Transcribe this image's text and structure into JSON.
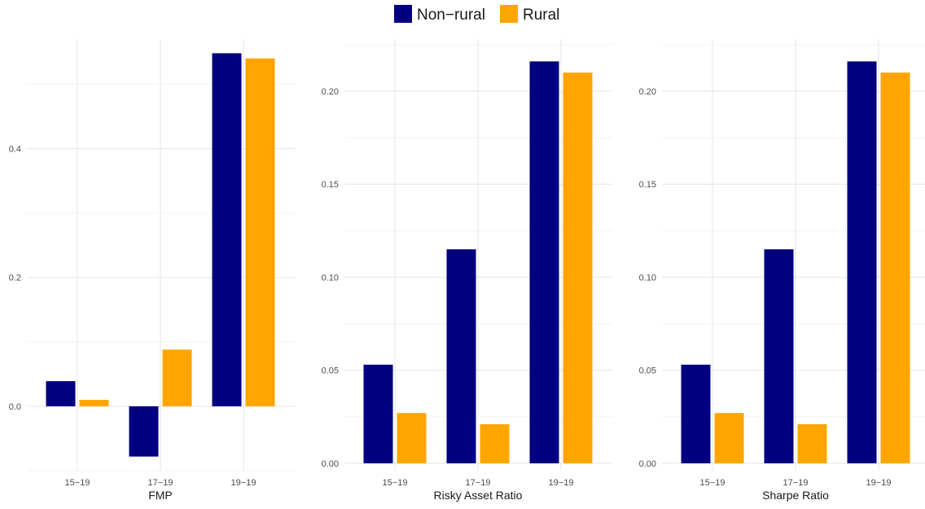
{
  "legend": {
    "position": "top",
    "items": [
      {
        "label": "Non−rural",
        "color": "#000080"
      },
      {
        "label": "Rural",
        "color": "#FFA500"
      }
    ]
  },
  "chart_data": [
    {
      "type": "bar",
      "xlabel": "FMP",
      "ylabel": "",
      "categories": [
        "15−19",
        "17−19",
        "19−19"
      ],
      "series": [
        {
          "name": "Non−rural",
          "color": "#000080",
          "values": [
            0.039,
            -0.078,
            0.548
          ]
        },
        {
          "name": "Rural",
          "color": "#FFA500",
          "values": [
            0.01,
            0.088,
            0.54
          ]
        }
      ],
      "ylim": [
        -0.1,
        0.57
      ],
      "yticks": [
        0.0,
        0.2,
        0.4
      ],
      "ytick_labels": [
        "0.0",
        "0.2",
        "0.4"
      ],
      "grid": true
    },
    {
      "type": "bar",
      "xlabel": "Risky Asset Ratio",
      "ylabel": "",
      "categories": [
        "15−19",
        "17−19",
        "19−19"
      ],
      "series": [
        {
          "name": "Non−rural",
          "color": "#000080",
          "values": [
            0.053,
            0.115,
            0.216
          ]
        },
        {
          "name": "Rural",
          "color": "#FFA500",
          "values": [
            0.027,
            0.021,
            0.21
          ]
        }
      ],
      "ylim": [
        -0.004,
        0.228
      ],
      "yticks": [
        0.0,
        0.05,
        0.1,
        0.15,
        0.2
      ],
      "ytick_labels": [
        "0.00",
        "0.05",
        "0.10",
        "0.15",
        "0.20"
      ],
      "grid": true
    },
    {
      "type": "bar",
      "xlabel": "Sharpe Ratio",
      "ylabel": "",
      "categories": [
        "15−19",
        "17−19",
        "19−19"
      ],
      "series": [
        {
          "name": "Non−rural",
          "color": "#000080",
          "values": [
            0.053,
            0.115,
            0.216
          ]
        },
        {
          "name": "Rural",
          "color": "#FFA500",
          "values": [
            0.027,
            0.021,
            0.21
          ]
        }
      ],
      "ylim": [
        -0.004,
        0.228
      ],
      "yticks": [
        0.0,
        0.05,
        0.1,
        0.15,
        0.2
      ],
      "ytick_labels": [
        "0.00",
        "0.05",
        "0.10",
        "0.15",
        "0.20"
      ],
      "grid": true
    }
  ]
}
